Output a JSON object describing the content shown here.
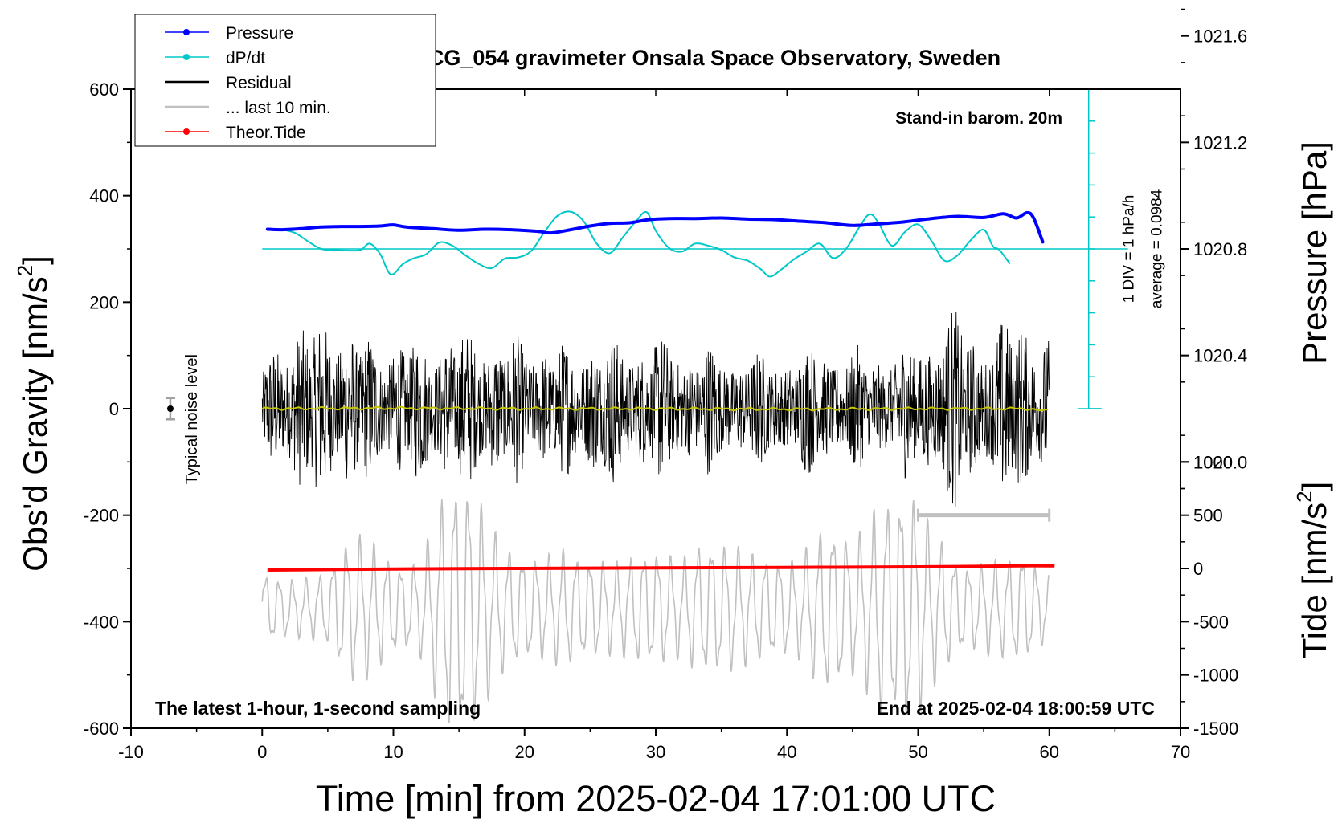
{
  "chart_data": {
    "type": "line",
    "title": "SCG_054 gravimeter Onsala Space Observatory, Sweden",
    "subtitle": "Stand-in barom. 20m",
    "xlabel": "Time [min] from 2025-02-04 17:01:00 UTC",
    "ylabel_left_main": "Obs'd Gravity [nm/s",
    "ylabel_left_sup": "2",
    "ylabel_left_end": "]",
    "ylabel_right_top": "Pressure [hPa]",
    "ylabel_right_bottom_main": "Tide [nm/s",
    "ylabel_right_bottom_sup": "2",
    "ylabel_right_bottom_end": "]",
    "xlim": [
      -10,
      70
    ],
    "ylim": [
      -600,
      600
    ],
    "x_ticks": [
      -10,
      0,
      10,
      20,
      30,
      40,
      50,
      60,
      70
    ],
    "x_tick_labels": [
      "-10",
      "0",
      "10",
      "20",
      "30",
      "40",
      "50",
      "60",
      "70"
    ],
    "y_ticks": [
      600,
      400,
      200,
      0,
      -200,
      -400,
      -600
    ],
    "y_tick_labels": [
      "600",
      "400",
      "200",
      "0",
      "-200",
      "-400",
      "-600"
    ],
    "pressure_axis": {
      "ticks": [
        1021.6,
        1021.2,
        1020.8,
        1020.4,
        1020.0
      ],
      "tick_labels": [
        "1021.6",
        "1021.2",
        "1020.8",
        "1020.4",
        "1020.0"
      ],
      "gravity_at_1020_8": 300,
      "gravity_per_hPa": 500
    },
    "tide_axis": {
      "ticks": [
        1000,
        500,
        0,
        -500,
        -1000,
        -1500
      ],
      "tick_labels": [
        "1000",
        "500",
        "0",
        "-500",
        "-1000",
        "-1500"
      ],
      "gravity_at_0": -300,
      "gravity_per_unit": 0.2
    },
    "dpdt_scale": {
      "label": "1 DIV = 1 hPa/h",
      "average_label": "average = 0.0984",
      "x": 63,
      "y_range": [
        0,
        600
      ],
      "div_value": 60,
      "zero_level": 300
    },
    "noise": {
      "label": "Typical noise level",
      "x": -7,
      "y": 0,
      "err": 20
    },
    "window_marker": {
      "x_range": [
        50,
        60
      ],
      "y": -200
    },
    "bottom_left_note": "The latest 1-hour, 1-second sampling",
    "bottom_right_note": "End at 2025-02-04 18:00:59 UTC",
    "legend": [
      {
        "label": "Pressure",
        "color": "#0000ff",
        "marker": true
      },
      {
        "label": "dP/dt",
        "color": "#00c8c8",
        "marker": true
      },
      {
        "label": "Residual",
        "color": "#000000",
        "marker": false
      },
      {
        "label": "... last 10 min.",
        "color": "#c0c0c0",
        "marker": false
      },
      {
        "label": "Theor.Tide",
        "color": "#ff0000",
        "marker": true
      }
    ],
    "series": [
      {
        "name": "Pressure",
        "color": "#0000ff",
        "x": [
          0.4,
          1.5,
          3,
          4.5,
          6,
          7.5,
          9,
          10,
          11,
          13,
          15,
          17,
          19,
          21,
          22,
          23.5,
          25,
          26.5,
          28,
          29.5,
          31,
          33,
          35,
          37,
          39,
          41,
          43,
          45,
          47,
          49,
          51,
          53,
          55,
          56.5,
          57.5,
          58.3,
          58.8,
          59.5
        ],
        "y": [
          337,
          336,
          338,
          341,
          342,
          342,
          343,
          345,
          341,
          338,
          335,
          337,
          336,
          333,
          330,
          336,
          343,
          348,
          349,
          355,
          357,
          357,
          358,
          356,
          355,
          352,
          349,
          344,
          347,
          351,
          357,
          361,
          359,
          366,
          358,
          368,
          358,
          313
        ]
      },
      {
        "name": "dP/dt",
        "color": "#00c8c8",
        "x": [
          0.4,
          1.5,
          2.5,
          3.5,
          4.5,
          5.5,
          6.5,
          7.5,
          8.2,
          9,
          9.8,
          10.7,
          11.5,
          12.5,
          13.5,
          14.5,
          15.5,
          16.5,
          17.5,
          18.5,
          19.5,
          20.5,
          21.5,
          22.5,
          23.5,
          24.5,
          25.5,
          26.5,
          27.5,
          28.5,
          29.3,
          30,
          31,
          32,
          33,
          34,
          35,
          36,
          37,
          38,
          38.7,
          39.5,
          40.5,
          41.5,
          42.5,
          43.5,
          44.5,
          45.5,
          46.3,
          47,
          48,
          49,
          50,
          51,
          52,
          53,
          54,
          55,
          55.7,
          56.2,
          57
        ],
        "y": [
          337,
          336,
          330,
          314,
          300,
          298,
          297,
          298,
          310,
          290,
          252,
          271,
          282,
          290,
          312,
          306,
          288,
          272,
          264,
          282,
          284,
          296,
          331,
          362,
          370,
          352,
          310,
          292,
          322,
          352,
          369,
          334,
          302,
          295,
          310,
          306,
          298,
          284,
          278,
          262,
          248,
          260,
          280,
          295,
          310,
          283,
          300,
          340,
          365,
          348,
          306,
          332,
          346,
          316,
          278,
          288,
          316,
          336,
          305,
          298,
          272
        ]
      },
      {
        "name": "Residual",
        "color": "#000000",
        "x": [
          0,
          2,
          5,
          8,
          10,
          13,
          15,
          18,
          20,
          23,
          25,
          28,
          30,
          33,
          35,
          38,
          40,
          43,
          45,
          48,
          50,
          52.5,
          55,
          58,
          60
        ],
        "y": [
          110,
          160,
          190,
          150,
          135,
          150,
          160,
          155,
          145,
          130,
          155,
          140,
          145,
          130,
          125,
          110,
          120,
          130,
          120,
          125,
          140,
          200,
          150,
          200,
          140
        ]
      },
      {
        "name": "... last 10 min.",
        "color": "#c0c0c0",
        "x": [
          0,
          1,
          2,
          3,
          4,
          5,
          6,
          7,
          8,
          9,
          10,
          11,
          12,
          13,
          14,
          15,
          16,
          17,
          18,
          19,
          20,
          21,
          22,
          23,
          24,
          25,
          26,
          27,
          28,
          29,
          30,
          31,
          32,
          33,
          34,
          35,
          36,
          37,
          38,
          39,
          40,
          41,
          42,
          43,
          44,
          45,
          46,
          47,
          48,
          49,
          50,
          51,
          52,
          53,
          54,
          55,
          56,
          57,
          58,
          59,
          60
        ],
        "y": [
          70,
          60,
          55,
          55,
          60,
          70,
          120,
          140,
          130,
          110,
          90,
          80,
          90,
          150,
          230,
          250,
          230,
          180,
          130,
          110,
          100,
          95,
          100,
          110,
          100,
          95,
          90,
          85,
          95,
          110,
          110,
          100,
          90,
          120,
          130,
          125,
          115,
          105,
          100,
          95,
          90,
          95,
          130,
          160,
          150,
          130,
          150,
          200,
          210,
          230,
          200,
          150,
          120,
          90,
          80,
          85,
          90,
          95,
          110,
          80,
          60
        ]
      },
      {
        "name": "Theor.Tide",
        "color": "#ff0000",
        "x": [
          0.4,
          10,
          20,
          30,
          40,
          50,
          55,
          58,
          60.4
        ],
        "y": [
          -303,
          -301,
          -300,
          -299,
          -298,
          -297,
          -296,
          -295,
          -295
        ]
      },
      {
        "name": "Residual filtered",
        "color": "#c8c800",
        "x": [
          0,
          10,
          20,
          30,
          40,
          50,
          58.5,
          59.5,
          60
        ],
        "y": [
          0,
          1,
          0,
          0,
          -1,
          0,
          0,
          -5,
          0
        ]
      }
    ]
  }
}
